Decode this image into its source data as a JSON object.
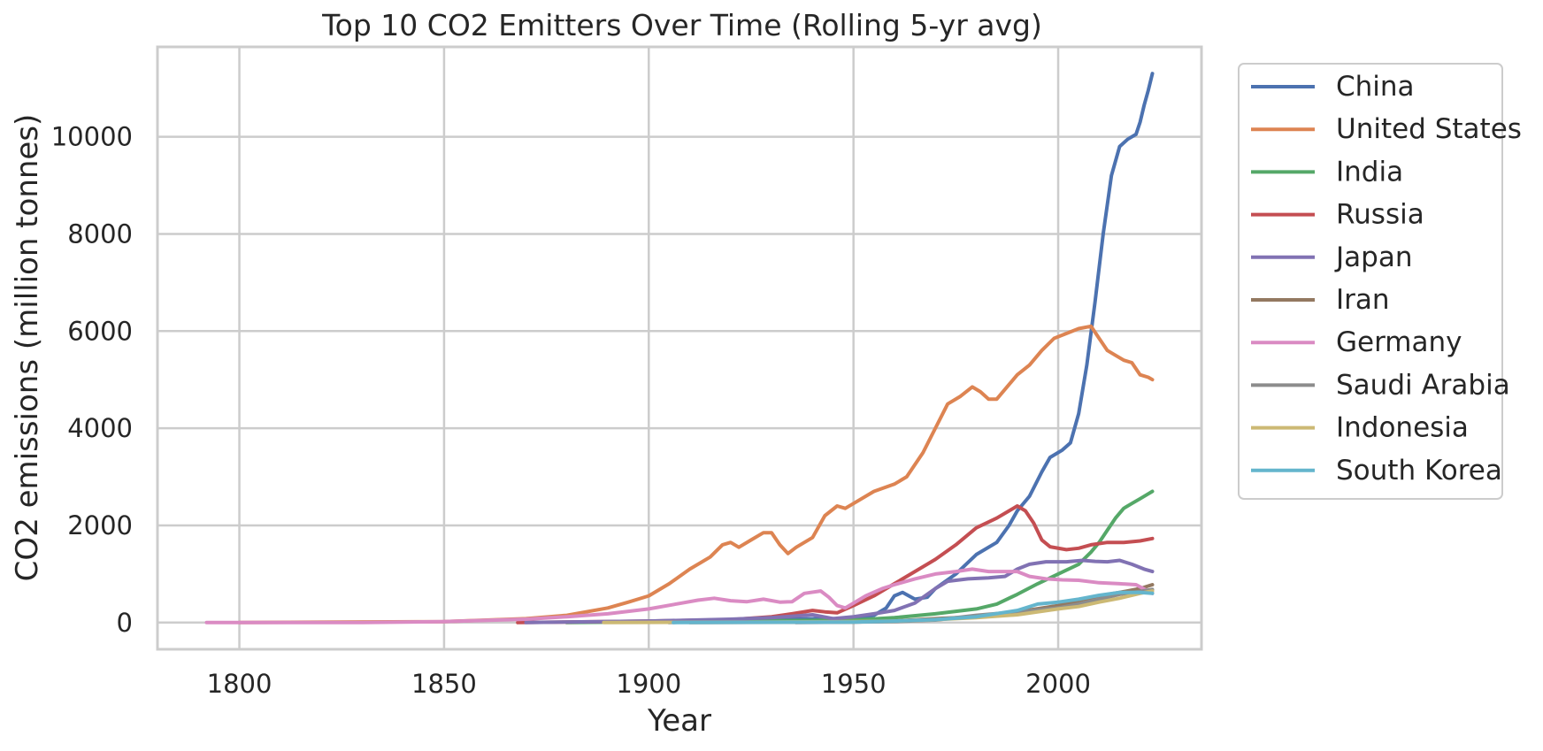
{
  "chart_data": {
    "type": "line",
    "title": "Top 10 CO2 Emitters Over Time (Rolling 5-yr avg)",
    "xlabel": "Year",
    "ylabel": "CO2 emissions (million tonnes)",
    "xlim": [
      1780,
      2035
    ],
    "ylim": [
      -550,
      11850
    ],
    "xticks": [
      1800,
      1850,
      1900,
      1950,
      2000
    ],
    "yticks": [
      0,
      2000,
      4000,
      6000,
      8000,
      10000
    ],
    "grid": true,
    "legend_position": "outside-right-top",
    "series": [
      {
        "name": "China",
        "color": "#4c72b0",
        "points": [
          [
            1905,
            0
          ],
          [
            1930,
            70
          ],
          [
            1945,
            80
          ],
          [
            1950,
            60
          ],
          [
            1955,
            150
          ],
          [
            1958,
            300
          ],
          [
            1960,
            550
          ],
          [
            1962,
            620
          ],
          [
            1965,
            480
          ],
          [
            1968,
            520
          ],
          [
            1970,
            700
          ],
          [
            1975,
            1000
          ],
          [
            1980,
            1400
          ],
          [
            1985,
            1650
          ],
          [
            1988,
            2000
          ],
          [
            1990,
            2300
          ],
          [
            1993,
            2600
          ],
          [
            1996,
            3100
          ],
          [
            1998,
            3400
          ],
          [
            2001,
            3550
          ],
          [
            2003,
            3700
          ],
          [
            2005,
            4300
          ],
          [
            2007,
            5300
          ],
          [
            2009,
            6600
          ],
          [
            2011,
            8000
          ],
          [
            2013,
            9200
          ],
          [
            2015,
            9800
          ],
          [
            2017,
            9950
          ],
          [
            2019,
            10050
          ],
          [
            2020,
            10300
          ],
          [
            2021,
            10650
          ],
          [
            2022,
            10950
          ],
          [
            2023,
            11300
          ]
        ]
      },
      {
        "name": "United States",
        "color": "#dd8452",
        "points": [
          [
            1800,
            0
          ],
          [
            1850,
            20
          ],
          [
            1870,
            80
          ],
          [
            1880,
            150
          ],
          [
            1890,
            300
          ],
          [
            1895,
            420
          ],
          [
            1900,
            550
          ],
          [
            1905,
            800
          ],
          [
            1910,
            1100
          ],
          [
            1915,
            1350
          ],
          [
            1918,
            1600
          ],
          [
            1920,
            1650
          ],
          [
            1922,
            1550
          ],
          [
            1925,
            1700
          ],
          [
            1928,
            1850
          ],
          [
            1930,
            1850
          ],
          [
            1932,
            1600
          ],
          [
            1934,
            1420
          ],
          [
            1936,
            1550
          ],
          [
            1940,
            1750
          ],
          [
            1943,
            2200
          ],
          [
            1946,
            2400
          ],
          [
            1948,
            2350
          ],
          [
            1950,
            2450
          ],
          [
            1955,
            2700
          ],
          [
            1960,
            2850
          ],
          [
            1963,
            3000
          ],
          [
            1967,
            3500
          ],
          [
            1970,
            4000
          ],
          [
            1973,
            4500
          ],
          [
            1976,
            4650
          ],
          [
            1979,
            4850
          ],
          [
            1981,
            4750
          ],
          [
            1983,
            4600
          ],
          [
            1985,
            4600
          ],
          [
            1988,
            4900
          ],
          [
            1990,
            5100
          ],
          [
            1993,
            5300
          ],
          [
            1996,
            5600
          ],
          [
            1999,
            5850
          ],
          [
            2002,
            5950
          ],
          [
            2005,
            6050
          ],
          [
            2008,
            6100
          ],
          [
            2010,
            5850
          ],
          [
            2012,
            5600
          ],
          [
            2014,
            5500
          ],
          [
            2016,
            5400
          ],
          [
            2018,
            5350
          ],
          [
            2020,
            5100
          ],
          [
            2022,
            5050
          ],
          [
            2023,
            5000
          ]
        ]
      },
      {
        "name": "India",
        "color": "#55a868",
        "points": [
          [
            1880,
            0
          ],
          [
            1950,
            50
          ],
          [
            1960,
            100
          ],
          [
            1970,
            180
          ],
          [
            1980,
            280
          ],
          [
            1985,
            380
          ],
          [
            1990,
            580
          ],
          [
            1995,
            800
          ],
          [
            2000,
            1000
          ],
          [
            2005,
            1200
          ],
          [
            2008,
            1450
          ],
          [
            2010,
            1650
          ],
          [
            2012,
            1900
          ],
          [
            2014,
            2150
          ],
          [
            2016,
            2350
          ],
          [
            2018,
            2450
          ],
          [
            2020,
            2550
          ],
          [
            2022,
            2650
          ],
          [
            2023,
            2700
          ]
        ]
      },
      {
        "name": "Russia",
        "color": "#c44e52",
        "points": [
          [
            1868,
            0
          ],
          [
            1900,
            30
          ],
          [
            1920,
            60
          ],
          [
            1930,
            120
          ],
          [
            1935,
            180
          ],
          [
            1940,
            250
          ],
          [
            1943,
            220
          ],
          [
            1946,
            200
          ],
          [
            1950,
            350
          ],
          [
            1955,
            550
          ],
          [
            1960,
            800
          ],
          [
            1965,
            1050
          ],
          [
            1970,
            1300
          ],
          [
            1975,
            1600
          ],
          [
            1980,
            1950
          ],
          [
            1985,
            2150
          ],
          [
            1988,
            2300
          ],
          [
            1990,
            2400
          ],
          [
            1992,
            2300
          ],
          [
            1994,
            2050
          ],
          [
            1996,
            1700
          ],
          [
            1998,
            1560
          ],
          [
            2002,
            1500
          ],
          [
            2005,
            1530
          ],
          [
            2008,
            1600
          ],
          [
            2012,
            1650
          ],
          [
            2016,
            1650
          ],
          [
            2020,
            1680
          ],
          [
            2023,
            1730
          ]
        ]
      },
      {
        "name": "Japan",
        "color": "#8172b3",
        "points": [
          [
            1870,
            0
          ],
          [
            1900,
            30
          ],
          [
            1920,
            70
          ],
          [
            1930,
            100
          ],
          [
            1940,
            160
          ],
          [
            1945,
            80
          ],
          [
            1950,
            120
          ],
          [
            1955,
            180
          ],
          [
            1960,
            250
          ],
          [
            1965,
            400
          ],
          [
            1970,
            700
          ],
          [
            1973,
            850
          ],
          [
            1978,
            900
          ],
          [
            1983,
            920
          ],
          [
            1987,
            950
          ],
          [
            1990,
            1100
          ],
          [
            1993,
            1200
          ],
          [
            1997,
            1250
          ],
          [
            2002,
            1250
          ],
          [
            2006,
            1280
          ],
          [
            2009,
            1260
          ],
          [
            2012,
            1250
          ],
          [
            2015,
            1280
          ],
          [
            2018,
            1200
          ],
          [
            2021,
            1100
          ],
          [
            2023,
            1050
          ]
        ]
      },
      {
        "name": "Iran",
        "color": "#937860",
        "points": [
          [
            1910,
            0
          ],
          [
            1950,
            10
          ],
          [
            1960,
            30
          ],
          [
            1970,
            80
          ],
          [
            1980,
            120
          ],
          [
            1990,
            220
          ],
          [
            2000,
            350
          ],
          [
            2005,
            450
          ],
          [
            2010,
            550
          ],
          [
            2015,
            620
          ],
          [
            2020,
            700
          ],
          [
            2023,
            780
          ]
        ]
      },
      {
        "name": "Germany",
        "color": "#da8bc3",
        "points": [
          [
            1792,
            0
          ],
          [
            1800,
            0
          ],
          [
            1830,
            0
          ],
          [
            1850,
            20
          ],
          [
            1870,
            70
          ],
          [
            1880,
            120
          ],
          [
            1890,
            180
          ],
          [
            1900,
            280
          ],
          [
            1908,
            400
          ],
          [
            1912,
            460
          ],
          [
            1916,
            500
          ],
          [
            1920,
            450
          ],
          [
            1924,
            430
          ],
          [
            1928,
            480
          ],
          [
            1932,
            420
          ],
          [
            1935,
            430
          ],
          [
            1938,
            600
          ],
          [
            1942,
            650
          ],
          [
            1944,
            520
          ],
          [
            1946,
            350
          ],
          [
            1948,
            300
          ],
          [
            1950,
            400
          ],
          [
            1953,
            550
          ],
          [
            1957,
            700
          ],
          [
            1960,
            780
          ],
          [
            1965,
            900
          ],
          [
            1970,
            1000
          ],
          [
            1975,
            1050
          ],
          [
            1979,
            1100
          ],
          [
            1983,
            1050
          ],
          [
            1987,
            1050
          ],
          [
            1990,
            1050
          ],
          [
            1993,
            950
          ],
          [
            1997,
            900
          ],
          [
            2001,
            880
          ],
          [
            2005,
            870
          ],
          [
            2010,
            820
          ],
          [
            2015,
            800
          ],
          [
            2019,
            780
          ],
          [
            2023,
            600
          ]
        ]
      },
      {
        "name": "Saudi Arabia",
        "color": "#8c8c8c",
        "points": [
          [
            1936,
            0
          ],
          [
            1950,
            10
          ],
          [
            1960,
            20
          ],
          [
            1970,
            50
          ],
          [
            1980,
            150
          ],
          [
            1990,
            220
          ],
          [
            2000,
            300
          ],
          [
            2005,
            380
          ],
          [
            2010,
            480
          ],
          [
            2015,
            580
          ],
          [
            2020,
            640
          ],
          [
            2023,
            680
          ]
        ]
      },
      {
        "name": "Indonesia",
        "color": "#ccb974",
        "points": [
          [
            1889,
            0
          ],
          [
            1930,
            10
          ],
          [
            1950,
            20
          ],
          [
            1960,
            30
          ],
          [
            1970,
            60
          ],
          [
            1980,
            100
          ],
          [
            1990,
            160
          ],
          [
            2000,
            280
          ],
          [
            2005,
            330
          ],
          [
            2010,
            420
          ],
          [
            2015,
            500
          ],
          [
            2020,
            600
          ],
          [
            2023,
            650
          ]
        ]
      },
      {
        "name": "South Korea",
        "color": "#64b5cd",
        "points": [
          [
            1906,
            0
          ],
          [
            1950,
            10
          ],
          [
            1960,
            30
          ],
          [
            1970,
            60
          ],
          [
            1980,
            120
          ],
          [
            1990,
            250
          ],
          [
            1995,
            380
          ],
          [
            2000,
            420
          ],
          [
            2005,
            480
          ],
          [
            2010,
            560
          ],
          [
            2015,
            620
          ],
          [
            2020,
            620
          ],
          [
            2023,
            600
          ]
        ]
      }
    ]
  }
}
